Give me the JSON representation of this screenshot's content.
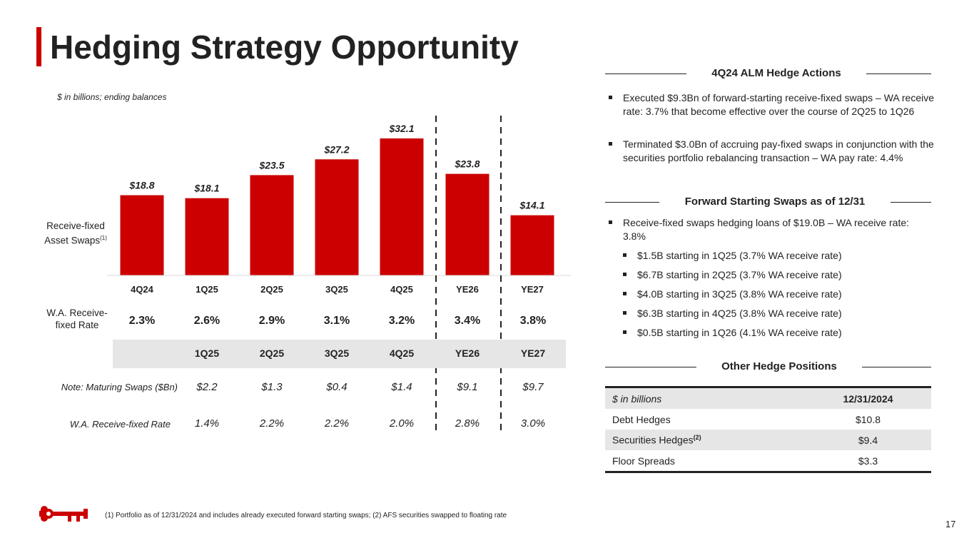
{
  "page": {
    "title": "Hedging Strategy Opportunity",
    "subnote": "$ in billions; ending balances",
    "footnote": "(1) Portfolio as of 12/31/2024 and includes already executed forward starting swaps; (2) AFS securities swapped to floating rate",
    "page_number": "17"
  },
  "colors": {
    "brand_red": "#cc0000",
    "band_gray": "#e6e6e6",
    "text": "#222222"
  },
  "icons": {
    "logo": "key-logo-icon"
  },
  "chart_data": {
    "type": "bar",
    "title": "Receive-fixed Asset Swaps",
    "series_label": "Receive-fixed Asset Swaps",
    "series_label_main": "Receive-fixed",
    "series_label_line2": "Asset Swaps",
    "series_label_sup": "(1)",
    "unit": "$ in billions",
    "categories": [
      "4Q24",
      "1Q25",
      "2Q25",
      "3Q25",
      "4Q25",
      "YE26",
      "YE27"
    ],
    "values": [
      18.8,
      18.1,
      23.5,
      27.2,
      32.1,
      23.8,
      14.1
    ],
    "value_labels": [
      "$18.8",
      "$18.1",
      "$23.5",
      "$27.2",
      "$32.1",
      "$23.8",
      "$14.1"
    ],
    "ylim": [
      0,
      32.1
    ],
    "color": "#cc0000",
    "rate_row_label_line1": "W.A. Receive-",
    "rate_row_label_line2": "fixed Rate",
    "rates": [
      "2.3%",
      "2.6%",
      "2.9%",
      "3.1%",
      "3.2%",
      "3.4%",
      "3.8%"
    ]
  },
  "maturing": {
    "headers": [
      "1Q25",
      "2Q25",
      "3Q25",
      "4Q25",
      "YE26",
      "YE27"
    ],
    "swaps_label": "Note: Maturing Swaps ($Bn)",
    "swaps": [
      "$2.2",
      "$1.3",
      "$0.4",
      "$1.4",
      "$9.1",
      "$9.7"
    ],
    "rate_label": "W.A. Receive-fixed Rate",
    "rates": [
      "1.4%",
      "2.2%",
      "2.2%",
      "2.0%",
      "2.8%",
      "3.0%"
    ]
  },
  "alm": {
    "heading": "4Q24 ALM Hedge Actions",
    "bullets": [
      "Executed $9.3Bn of forward-starting receive-fixed swaps – WA receive rate: 3.7% that become effective over the course of 2Q25 to 1Q26",
      "Terminated $3.0Bn of accruing pay-fixed swaps in conjunction with the securities portfolio rebalancing transaction – WA pay rate: 4.4%"
    ]
  },
  "forward": {
    "heading": "Forward Starting Swaps as of 12/31",
    "main": "Receive-fixed swaps hedging loans of $19.0B – WA receive rate: 3.8%",
    "sub": [
      "$1.5B starting in 1Q25 (3.7% WA receive rate)",
      "$6.7B starting in 2Q25 (3.7% WA receive rate)",
      "$4.0B starting in 3Q25 (3.8% WA receive rate)",
      "$6.3B starting in 4Q25 (3.8% WA receive rate)",
      "$0.5B starting in 1Q26 (4.1% WA receive rate)"
    ]
  },
  "other": {
    "heading": "Other Hedge Positions",
    "col1": "$ in billions",
    "col2": "12/31/2024",
    "rows": [
      {
        "label": "Debt Hedges",
        "sup": "",
        "value": "$10.8"
      },
      {
        "label": "Securities Hedges",
        "sup": "(2)",
        "value": "$9.4"
      },
      {
        "label": "Floor Spreads",
        "sup": "",
        "value": "$3.3"
      }
    ]
  }
}
